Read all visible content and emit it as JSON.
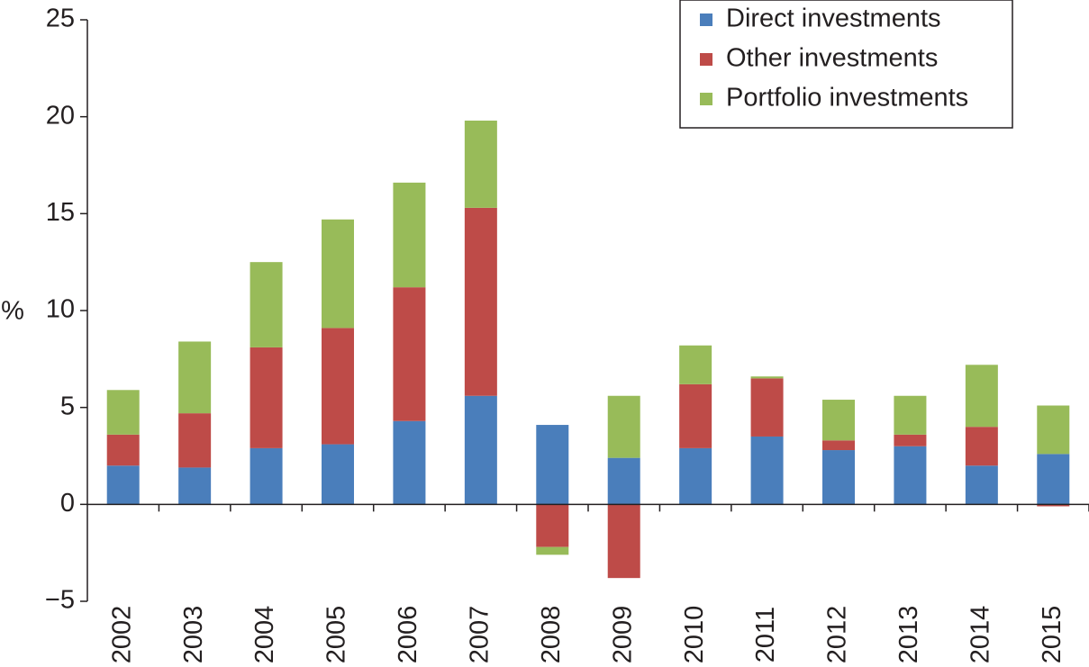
{
  "chart_data": {
    "type": "stacked_bar",
    "y_label": "%",
    "categories": [
      "2002",
      "2003",
      "2004",
      "2005",
      "2006",
      "2007",
      "2008",
      "2009",
      "2010",
      "2011",
      "2012",
      "2013",
      "2014",
      "2015"
    ],
    "series": [
      {
        "name": "Direct investments",
        "color": "#4a7ebb",
        "values": [
          2.0,
          1.9,
          2.9,
          3.1,
          4.3,
          5.6,
          4.1,
          2.4,
          2.9,
          3.5,
          2.8,
          3.0,
          2.0,
          2.6
        ]
      },
      {
        "name": "Other investments",
        "color": "#be4b48",
        "values": [
          1.6,
          2.8,
          5.2,
          6.0,
          6.9,
          9.7,
          -2.2,
          -3.8,
          3.3,
          3.0,
          0.5,
          0.6,
          2.0,
          -0.1
        ]
      },
      {
        "name": "Portfolio investments",
        "color": "#98bb59",
        "values": [
          2.3,
          3.7,
          4.4,
          5.6,
          5.4,
          4.5,
          -0.4,
          3.2,
          2.0,
          0.1,
          2.1,
          2.0,
          3.2,
          2.5
        ]
      }
    ],
    "ylim": [
      -5,
      25
    ],
    "yticks": [
      {
        "value": -5,
        "label": "−5"
      },
      0,
      5,
      10,
      15,
      20,
      25
    ]
  }
}
